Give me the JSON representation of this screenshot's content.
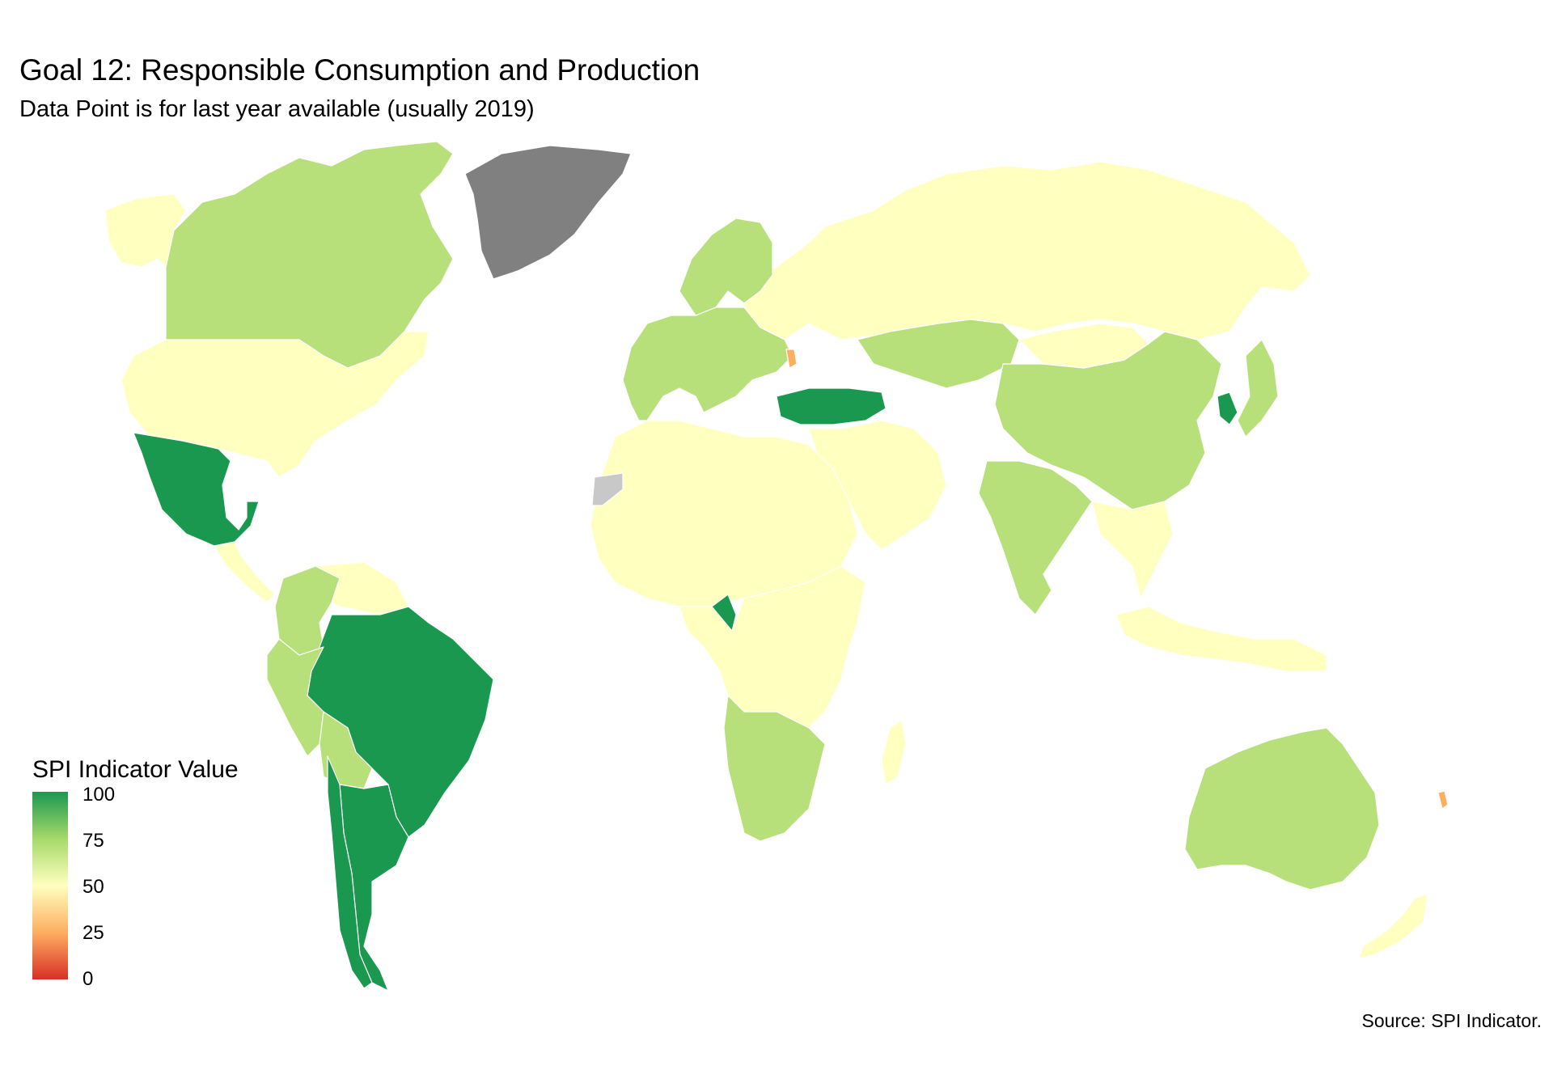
{
  "title": "Goal 12: Responsible Consumption and Production",
  "subtitle": "Data Point is for last year available (usually 2019)",
  "caption": "Source: SPI Indicator.",
  "legend": {
    "title": "SPI Indicator Value",
    "ticks": [
      "100",
      "75",
      "50",
      "25",
      "0"
    ],
    "scale_colors": [
      "#1a9850",
      "#a6d96a",
      "#ffffbf",
      "#fdae61",
      "#d73027"
    ]
  },
  "colors": {
    "high": "#1a9850",
    "mid_high": "#b7e07a",
    "mid": "#ffffbf",
    "low": "#fdae61",
    "no_data_greenland": "#808080",
    "no_data": "#c8c8c8"
  },
  "regions": [
    {
      "name": "Canada",
      "level": "mid_high"
    },
    {
      "name": "Alaska",
      "level": "mid"
    },
    {
      "name": "United States",
      "level": "mid"
    },
    {
      "name": "Greenland",
      "level": "no_data_greenland"
    },
    {
      "name": "Mexico",
      "level": "high"
    },
    {
      "name": "Central America",
      "level": "mid"
    },
    {
      "name": "Colombia",
      "level": "mid_high"
    },
    {
      "name": "Venezuela",
      "level": "mid"
    },
    {
      "name": "Brazil",
      "level": "high"
    },
    {
      "name": "Peru",
      "level": "mid_high"
    },
    {
      "name": "Bolivia",
      "level": "mid_high"
    },
    {
      "name": "Argentina",
      "level": "high"
    },
    {
      "name": "Chile",
      "level": "high"
    },
    {
      "name": "Russia",
      "level": "mid"
    },
    {
      "name": "Europe",
      "level": "mid_high"
    },
    {
      "name": "Scandinavia",
      "level": "mid_high"
    },
    {
      "name": "Turkey",
      "level": "high"
    },
    {
      "name": "Kazakhstan",
      "level": "mid_high"
    },
    {
      "name": "China",
      "level": "mid_high"
    },
    {
      "name": "Mongolia",
      "level": "mid"
    },
    {
      "name": "India",
      "level": "mid_high"
    },
    {
      "name": "Middle East",
      "level": "mid"
    },
    {
      "name": "Algeria",
      "level": "mid_high"
    },
    {
      "name": "North Africa",
      "level": "mid"
    },
    {
      "name": "West Sahara",
      "level": "no_data"
    },
    {
      "name": "Cameroon",
      "level": "high"
    },
    {
      "name": "Central Africa",
      "level": "mid"
    },
    {
      "name": "Southern Africa",
      "level": "mid_high"
    },
    {
      "name": "Madagascar",
      "level": "mid"
    },
    {
      "name": "Southeast Asia",
      "level": "mid"
    },
    {
      "name": "Indonesia",
      "level": "mid"
    },
    {
      "name": "Australia",
      "level": "mid_high"
    },
    {
      "name": "New Zealand",
      "level": "mid"
    },
    {
      "name": "Japan",
      "level": "mid_high"
    },
    {
      "name": "South Korea",
      "level": "high"
    },
    {
      "name": "Moldova",
      "level": "low"
    },
    {
      "name": "New Caledonia",
      "level": "low"
    }
  ]
}
